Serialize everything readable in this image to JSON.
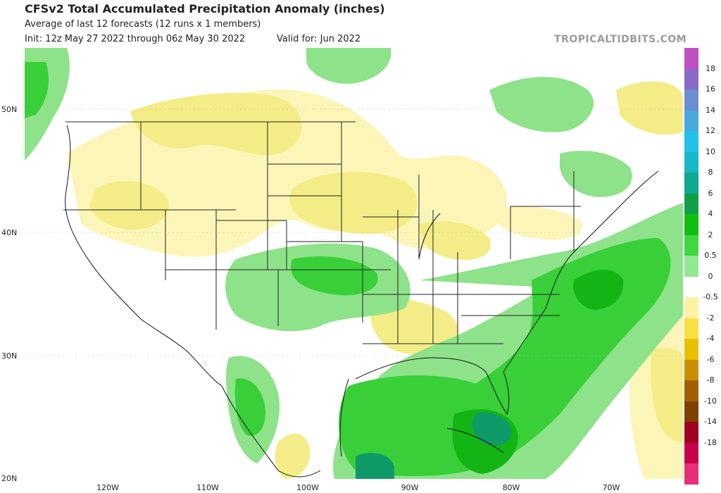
{
  "header": {
    "title": "CFSv2 Total Accumulated Precipitation Anomaly (inches)",
    "subtitle": "Average of last 12 forecasts (12 runs x 1 members)",
    "init": "Init: 12z May 27 2022 through 06z May 30 2022",
    "valid": "Valid for: Jun 2022",
    "source": "TROPICALTIDBITS.COM"
  },
  "axes": {
    "lat_labels": [
      "50N",
      "40N",
      "30N",
      "20N"
    ],
    "lon_labels": [
      "120W",
      "110W",
      "100W",
      "90W",
      "80W",
      "70W"
    ]
  },
  "colorbar": {
    "labels": [
      "18",
      "16",
      "14",
      "12",
      "10",
      "8",
      "6",
      "4",
      "2",
      "0.5",
      "0",
      "-0.5",
      "-2",
      "-4",
      "-6",
      "-8",
      "-10",
      "-14",
      "-18"
    ],
    "colors": [
      "#c050c0",
      "#8a6cc8",
      "#6a8ed0",
      "#4aa8e0",
      "#20c0e8",
      "#18b8c8",
      "#10a890",
      "#10a048",
      "#10c010",
      "#40d840",
      "#90e890",
      "#ffffff",
      "#fff2a0",
      "#f8e040",
      "#e8c000",
      "#c89000",
      "#a06000",
      "#804000",
      "#a00020",
      "#c8004a",
      "#e8307a"
    ]
  },
  "map": {
    "legend_colors": {
      "wet_light": "#8ee28a",
      "wet_mid": "#38cf38",
      "wet_strong": "#14b414",
      "wet_deep": "#109a6a",
      "dry_light": "#fbf6b8",
      "dry_mid": "#f4ec86",
      "land_neutral": "#ffffff"
    }
  }
}
